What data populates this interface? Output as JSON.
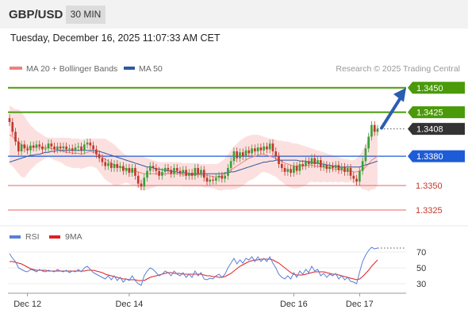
{
  "header": {
    "symbol": "GBP/USD",
    "interval": "30 MIN",
    "timestamp": "Tuesday, December 16, 2025 11:07:33 AM CET"
  },
  "legend": {
    "bb_label": "MA 20 + Bollinger Bands",
    "ma50_label": "MA 50",
    "credit": "Research © 2025 Trading Central"
  },
  "rsi_legend": {
    "rsi_label": "RSI",
    "ma_label": "9MA"
  },
  "colors": {
    "up": "#3aa03a",
    "down": "#c0392b",
    "green_level": "#4a9a0a",
    "blue_level": "#1e5bd6",
    "red_level": "#f08080",
    "ma20": "#f08080",
    "ma50": "#2d5aa0",
    "bb_fill": "#fbd5d5",
    "rsi_line": "#5a7fd6",
    "rsi_ma": "#e02020",
    "current": "#333333",
    "arrow": "#2a5db0"
  },
  "chart_data": [
    {
      "type": "candlestick",
      "ylim": [
        1.3312,
        1.3462
      ],
      "levels": [
        {
          "value": 1.345,
          "label": "1.3450",
          "style": "green"
        },
        {
          "value": 1.3425,
          "label": "1.3425",
          "style": "green"
        },
        {
          "value": 1.3408,
          "label": "1.3408",
          "style": "current"
        },
        {
          "value": 1.338,
          "label": "1.3380",
          "style": "blue"
        },
        {
          "value": 1.335,
          "label": "1.3350",
          "style": "red"
        },
        {
          "value": 1.3325,
          "label": "1.3325",
          "style": "red"
        }
      ],
      "closes": [
        1.3415,
        1.3405,
        1.3395,
        1.3385,
        1.3392,
        1.3388,
        1.3386,
        1.3391,
        1.3389,
        1.3392,
        1.339,
        1.3387,
        1.3388,
        1.3393,
        1.339,
        1.3387,
        1.339,
        1.3388,
        1.339,
        1.3387,
        1.3388,
        1.3386,
        1.3389,
        1.339,
        1.3386,
        1.3392,
        1.3394,
        1.3391,
        1.3387,
        1.3382,
        1.3378,
        1.3374,
        1.337,
        1.3373,
        1.3368,
        1.3372,
        1.3368,
        1.337,
        1.3365,
        1.3368,
        1.3363,
        1.3368,
        1.336,
        1.3352,
        1.3349,
        1.3358,
        1.3365,
        1.337,
        1.3368,
        1.3365,
        1.336,
        1.3364,
        1.3368,
        1.3366,
        1.3362,
        1.3368,
        1.3365,
        1.3363,
        1.3366,
        1.336,
        1.3363,
        1.336,
        1.3368,
        1.3362,
        1.3366,
        1.3358,
        1.3354,
        1.3356,
        1.3355,
        1.3358,
        1.336,
        1.3357,
        1.336,
        1.3368,
        1.3375,
        1.3385,
        1.3378,
        1.3384,
        1.338,
        1.3386,
        1.3383,
        1.3388,
        1.3385,
        1.3389,
        1.3386,
        1.339,
        1.3387,
        1.3393,
        1.3385,
        1.338,
        1.3372,
        1.3368,
        1.3364,
        1.3367,
        1.3363,
        1.337,
        1.3365,
        1.3372,
        1.337,
        1.3375,
        1.3372,
        1.3378,
        1.3372,
        1.3376,
        1.3369,
        1.3371,
        1.3367,
        1.337,
        1.3368,
        1.3371,
        1.3366,
        1.3369,
        1.3364,
        1.3368,
        1.336,
        1.3357,
        1.3354,
        1.3365,
        1.3375,
        1.3388,
        1.34,
        1.3412,
        1.3405,
        1.3408
      ],
      "ma20": [
        1.3402,
        1.34,
        1.3397,
        1.3394,
        1.3392,
        1.339,
        1.3389,
        1.3389,
        1.3389,
        1.3389,
        1.3389,
        1.3389,
        1.3389,
        1.3389,
        1.3388,
        1.3387,
        1.3387,
        1.3386,
        1.3385,
        1.3384,
        1.3384,
        1.3383,
        1.3383,
        1.3383,
        1.3382,
        1.3383,
        1.3384,
        1.3385,
        1.3384,
        1.3383,
        1.3381,
        1.3379,
        1.3377,
        1.3375,
        1.3373,
        1.3371,
        1.337,
        1.3369,
        1.3368,
        1.3367,
        1.3366,
        1.3365,
        1.3365,
        1.3364,
        1.3363,
        1.3362,
        1.3362,
        1.3362,
        1.3362,
        1.3362,
        1.3362,
        1.3362,
        1.3362,
        1.3362,
        1.3362,
        1.3362,
        1.3362,
        1.3362,
        1.3361,
        1.3361,
        1.3361,
        1.3361,
        1.3361,
        1.3361,
        1.3361,
        1.336,
        1.336,
        1.336,
        1.3359,
        1.3359,
        1.3359,
        1.336,
        1.3362,
        1.3364,
        1.3366,
        1.3368,
        1.337,
        1.3372,
        1.3374,
        1.3376,
        1.3378,
        1.3379,
        1.338,
        1.3381,
        1.3382,
        1.3382,
        1.3381,
        1.338,
        1.3379,
        1.3378,
        1.3376,
        1.3375,
        1.3373,
        1.3372,
        1.3371,
        1.337,
        1.337,
        1.337,
        1.337,
        1.337,
        1.3371,
        1.3371,
        1.337,
        1.337,
        1.3369,
        1.3369,
        1.3368,
        1.3368,
        1.3367,
        1.3367,
        1.3366,
        1.3366,
        1.3365,
        1.3365,
        1.3365,
        1.3364,
        1.3364,
        1.3365,
        1.3366,
        1.3369,
        1.3372,
        1.3376,
        1.3378,
        1.338
      ],
      "bb_upper": [
        1.3432,
        1.343,
        1.3428,
        1.3428,
        1.3425,
        1.3421,
        1.3416,
        1.3412,
        1.3409,
        1.3406,
        1.3404,
        1.3402,
        1.34,
        1.3399,
        1.3399,
        1.3399,
        1.3399,
        1.3399,
        1.3399,
        1.3399,
        1.3399,
        1.3398,
        1.3398,
        1.3398,
        1.3397,
        1.3398,
        1.3398,
        1.3398,
        1.3398,
        1.3398,
        1.3398,
        1.3398,
        1.3398,
        1.3396,
        1.3394,
        1.3392,
        1.3389,
        1.3386,
        1.3383,
        1.3381,
        1.338,
        1.338,
        1.338,
        1.338,
        1.338,
        1.3379,
        1.3378,
        1.3377,
        1.3376,
        1.3375,
        1.3374,
        1.3374,
        1.3374,
        1.3374,
        1.3374,
        1.3374,
        1.3374,
        1.3374,
        1.3373,
        1.3373,
        1.3373,
        1.3373,
        1.3373,
        1.3373,
        1.3372,
        1.3372,
        1.3372,
        1.3372,
        1.3372,
        1.3372,
        1.3373,
        1.3375,
        1.3378,
        1.3382,
        1.3386,
        1.339,
        1.3393,
        1.3396,
        1.3398,
        1.34,
        1.3401,
        1.3402,
        1.3402,
        1.3402,
        1.3401,
        1.34,
        1.3399,
        1.3398,
        1.3398,
        1.3397,
        1.3396,
        1.3396,
        1.3395,
        1.3395,
        1.3394,
        1.3393,
        1.3393,
        1.3392,
        1.3391,
        1.339,
        1.3389,
        1.3388,
        1.3387,
        1.3386,
        1.3385,
        1.3384,
        1.3383,
        1.3382,
        1.3381,
        1.338,
        1.3379,
        1.3378,
        1.3377,
        1.3377,
        1.3376,
        1.3376,
        1.3378,
        1.3381,
        1.3386,
        1.3392,
        1.34,
        1.3406,
        1.341,
        1.341
      ],
      "bb_lower": [
        1.3372,
        1.337,
        1.3366,
        1.3362,
        1.3359,
        1.3358,
        1.3362,
        1.3366,
        1.3369,
        1.3372,
        1.3374,
        1.3376,
        1.3378,
        1.3379,
        1.3378,
        1.3376,
        1.3375,
        1.3374,
        1.3372,
        1.337,
        1.3369,
        1.3368,
        1.3368,
        1.3368,
        1.3367,
        1.3368,
        1.3369,
        1.337,
        1.3369,
        1.3368,
        1.3364,
        1.336,
        1.3356,
        1.3354,
        1.3352,
        1.335,
        1.335,
        1.3351,
        1.3352,
        1.3353,
        1.3352,
        1.335,
        1.335,
        1.3348,
        1.3346,
        1.3345,
        1.3346,
        1.3347,
        1.3348,
        1.3349,
        1.335,
        1.335,
        1.335,
        1.335,
        1.335,
        1.335,
        1.335,
        1.335,
        1.3349,
        1.3349,
        1.3349,
        1.3349,
        1.3349,
        1.3349,
        1.3349,
        1.3348,
        1.3348,
        1.3348,
        1.3347,
        1.3346,
        1.3345,
        1.3345,
        1.3346,
        1.3346,
        1.3346,
        1.3346,
        1.3347,
        1.3348,
        1.335,
        1.3352,
        1.3355,
        1.3356,
        1.3358,
        1.336,
        1.3363,
        1.3364,
        1.3363,
        1.3362,
        1.336,
        1.3359,
        1.3356,
        1.3354,
        1.3351,
        1.3349,
        1.3348,
        1.3347,
        1.3347,
        1.3348,
        1.3349,
        1.335,
        1.3353,
        1.3354,
        1.3353,
        1.3354,
        1.3353,
        1.3354,
        1.3353,
        1.3354,
        1.3353,
        1.3354,
        1.3353,
        1.3354,
        1.3353,
        1.3353,
        1.3354,
        1.3352,
        1.335,
        1.3349,
        1.3346,
        1.3346,
        1.3344,
        1.3346,
        1.3346,
        1.335
      ],
      "ma50": [
        1.3374,
        1.3375,
        1.3376,
        1.3377,
        1.3378,
        1.3379,
        1.338,
        1.3381,
        1.3381,
        1.3382,
        1.3382,
        1.3383,
        1.3384,
        1.3384,
        1.3385,
        1.3385,
        1.3386,
        1.3386,
        1.3386,
        1.3386,
        1.3386,
        1.3386,
        1.3386,
        1.3386,
        1.3386,
        1.3386,
        1.3386,
        1.3386,
        1.3386,
        1.3385,
        1.3385,
        1.3384,
        1.3383,
        1.3382,
        1.3381,
        1.338,
        1.3379,
        1.3378,
        1.3377,
        1.3376,
        1.3375,
        1.3374,
        1.3373,
        1.3372,
        1.3371,
        1.337,
        1.3369,
        1.3369,
        1.3368,
        1.3367,
        1.3367,
        1.3366,
        1.3366,
        1.3365,
        1.3365,
        1.3364,
        1.3364,
        1.3363,
        1.3363,
        1.3363,
        1.3362,
        1.3362,
        1.3362,
        1.3362,
        1.3362,
        1.3362,
        1.3362,
        1.3362,
        1.3362,
        1.3362,
        1.3362,
        1.3362,
        1.3363,
        1.3363,
        1.3364,
        1.3364,
        1.3365,
        1.3366,
        1.3367,
        1.3368,
        1.3369,
        1.337,
        1.3371,
        1.3372,
        1.3373,
        1.3374,
        1.3374,
        1.3375,
        1.3375,
        1.3376,
        1.3376,
        1.3376,
        1.3376,
        1.3376,
        1.3376,
        1.3376,
        1.3376,
        1.3375,
        1.3375,
        1.3375,
        1.3374,
        1.3374,
        1.3373,
        1.3373,
        1.3372,
        1.3372,
        1.3371,
        1.3371,
        1.337,
        1.337,
        1.3369,
        1.3369,
        1.3369,
        1.3369,
        1.3369,
        1.3369,
        1.3369,
        1.3369,
        1.337,
        1.3371,
        1.3372,
        1.3373,
        1.3374,
        1.3375
      ],
      "projection": {
        "from": 1.3408,
        "to": 1.345
      },
      "x_tick_labels": [
        "Dec 12",
        "Dec 14",
        "Dec 16",
        "Dec 17"
      ],
      "x_tick_index": [
        6,
        40,
        95,
        117
      ]
    },
    {
      "type": "line",
      "ylim": [
        20,
        80
      ],
      "y_ticks": [
        30,
        50,
        70
      ],
      "y_tick_labels": [
        "30",
        "50",
        "70"
      ],
      "rsi": [
        68,
        62,
        58,
        50,
        48,
        46,
        45,
        48,
        47,
        45,
        48,
        46,
        45,
        47,
        46,
        45,
        48,
        46,
        45,
        47,
        44,
        46,
        45,
        48,
        45,
        50,
        52,
        48,
        44,
        42,
        40,
        38,
        36,
        40,
        35,
        40,
        34,
        38,
        32,
        36,
        34,
        40,
        34,
        30,
        28,
        40,
        46,
        50,
        48,
        44,
        40,
        42,
        46,
        44,
        40,
        46,
        42,
        40,
        44,
        38,
        42,
        38,
        46,
        40,
        44,
        36,
        35,
        37,
        36,
        40,
        42,
        38,
        42,
        50,
        56,
        62,
        55,
        60,
        56,
        62,
        60,
        64,
        58,
        64,
        58,
        62,
        58,
        64,
        56,
        50,
        42,
        38,
        36,
        40,
        36,
        44,
        38,
        46,
        42,
        48,
        44,
        52,
        46,
        48,
        40,
        43,
        38,
        42,
        40,
        43,
        36,
        40,
        35,
        38,
        33,
        32,
        30,
        45,
        58,
        66,
        72,
        76,
        74,
        75
      ],
      "rsi_ma": [
        58,
        58,
        57,
        56,
        55,
        53,
        51,
        49,
        48,
        47,
        47,
        47,
        47,
        46,
        46,
        46,
        46,
        46,
        46,
        46,
        46,
        46,
        46,
        46,
        46,
        46,
        47,
        47,
        47,
        46,
        45,
        44,
        42,
        41,
        40,
        39,
        38,
        37,
        36,
        36,
        35,
        35,
        35,
        34,
        34,
        34,
        36,
        38,
        39,
        40,
        41,
        42,
        43,
        44,
        44,
        43,
        43,
        43,
        42,
        42,
        42,
        42,
        42,
        42,
        42,
        41,
        40,
        40,
        39,
        39,
        38,
        38,
        39,
        41,
        43,
        46,
        49,
        52,
        54,
        56,
        58,
        59,
        60,
        60,
        61,
        61,
        61,
        61,
        60,
        58,
        56,
        53,
        50,
        47,
        44,
        42,
        41,
        41,
        41,
        42,
        43,
        44,
        45,
        45,
        45,
        45,
        44,
        43,
        42,
        42,
        41,
        40,
        39,
        38,
        37,
        36,
        35,
        36,
        39,
        43,
        47,
        52,
        56,
        60
      ],
      "dotted_level": 75
    }
  ]
}
